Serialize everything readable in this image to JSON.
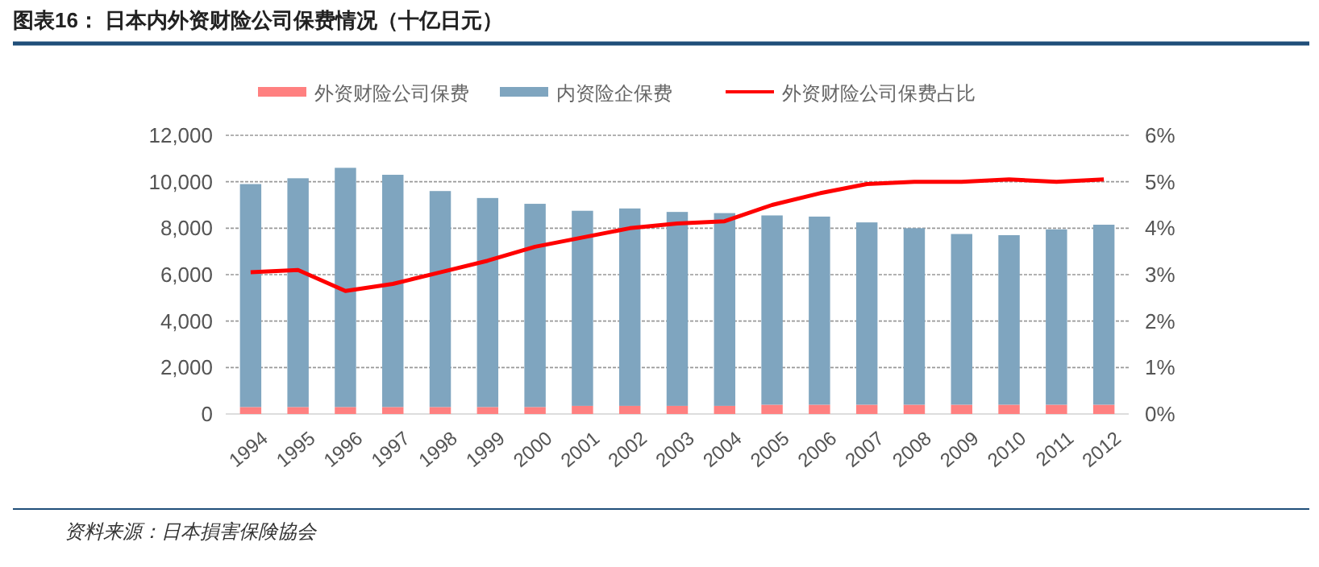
{
  "chart_data": {
    "type": "bar",
    "title": "图表16：  日本内外资财险公司保费情况（十亿日元）",
    "stacked": true,
    "categories": [
      "1994",
      "1995",
      "1996",
      "1997",
      "1998",
      "1999",
      "2000",
      "2001",
      "2002",
      "2003",
      "2004",
      "2005",
      "2006",
      "2007",
      "2008",
      "2009",
      "2010",
      "2011",
      "2012"
    ],
    "series": [
      {
        "name": "外资财险公司保费",
        "color": "#ff8080",
        "values": [
          300,
          300,
          300,
          300,
          300,
          300,
          300,
          350,
          350,
          350,
          350,
          400,
          400,
          400,
          400,
          400,
          400,
          400,
          400
        ]
      },
      {
        "name": "内资险企保费",
        "color": "#7fa5bf",
        "values": [
          9600,
          9850,
          10300,
          10000,
          9300,
          9000,
          8750,
          8400,
          8500,
          8350,
          8300,
          8150,
          8100,
          7850,
          7600,
          7350,
          7300,
          7550,
          7750
        ]
      },
      {
        "name": "外资财险公司保费占比",
        "type": "line",
        "axis": "y2",
        "color": "#ff0000",
        "values": [
          3.05,
          3.1,
          2.65,
          2.8,
          3.05,
          3.3,
          3.6,
          3.8,
          4.0,
          4.1,
          4.15,
          4.5,
          4.75,
          4.95,
          5.0,
          5.0,
          5.05,
          5.0,
          5.05
        ]
      }
    ],
    "ylim": [
      0,
      12000
    ],
    "yticks": [
      {
        "value": 0,
        "label": "0"
      },
      {
        "value": 2000,
        "label": "2,000"
      },
      {
        "value": 4000,
        "label": "4,000"
      },
      {
        "value": 6000,
        "label": "6,000"
      },
      {
        "value": 8000,
        "label": "8,000"
      },
      {
        "value": 10000,
        "label": "10,000"
      },
      {
        "value": 12000,
        "label": "12,000"
      }
    ],
    "y2lim": [
      0,
      6
    ],
    "y2ticks": [
      {
        "value": 0,
        "label": "0%"
      },
      {
        "value": 1,
        "label": "1%"
      },
      {
        "value": 2,
        "label": "2%"
      },
      {
        "value": 3,
        "label": "3%"
      },
      {
        "value": 4,
        "label": "4%"
      },
      {
        "value": 5,
        "label": "5%"
      },
      {
        "value": 6,
        "label": "6%"
      }
    ],
    "grid": "y",
    "legend": "top",
    "annotations": [
      "资料来源：日本損害保険協会"
    ]
  }
}
